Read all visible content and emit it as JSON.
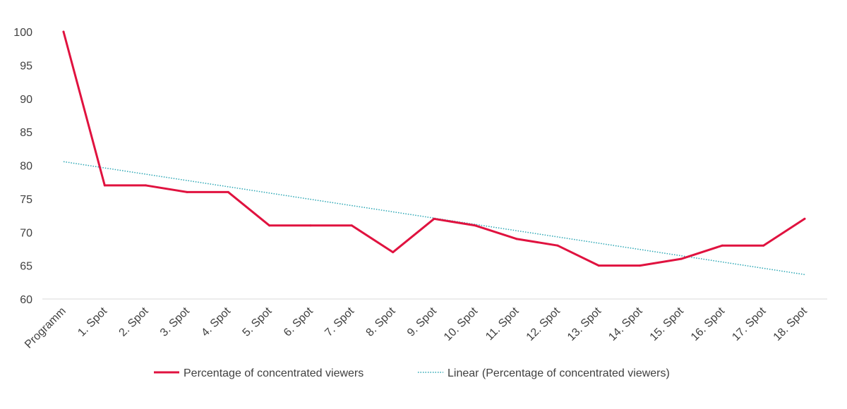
{
  "chart_data": {
    "type": "line",
    "categories": [
      "Programm",
      "1. Spot",
      "2. Spot",
      "3. Spot",
      "4. Spot",
      "5. Spot",
      "6. Spot",
      "7. Spot",
      "8. Spot",
      "9. Spot",
      "10. Spot",
      "11. Spot",
      "12. Spot",
      "13. Spot",
      "14. Spot",
      "15. Spot",
      "16. Spot",
      "17. Spot",
      "18. Spot"
    ],
    "series": [
      {
        "name": "Percentage of concentrated viewers",
        "values": [
          100,
          77,
          77,
          76,
          76,
          71,
          71,
          71,
          67,
          72,
          71,
          69,
          68,
          65,
          65,
          66,
          68,
          68,
          72
        ],
        "color": "#e0123f",
        "style": "solid"
      }
    ],
    "trendline": {
      "name": "Linear (Percentage of concentrated viewers)",
      "type": "linear",
      "of_series": "Percentage of concentrated viewers",
      "color": "#2aa6b4",
      "style": "dotted"
    },
    "title": "",
    "xlabel": "",
    "ylabel": "",
    "ylim": [
      60,
      100
    ],
    "y_ticks": [
      60,
      65,
      70,
      75,
      80,
      85,
      90,
      95,
      100
    ],
    "grid": false,
    "legend_position": "bottom"
  }
}
